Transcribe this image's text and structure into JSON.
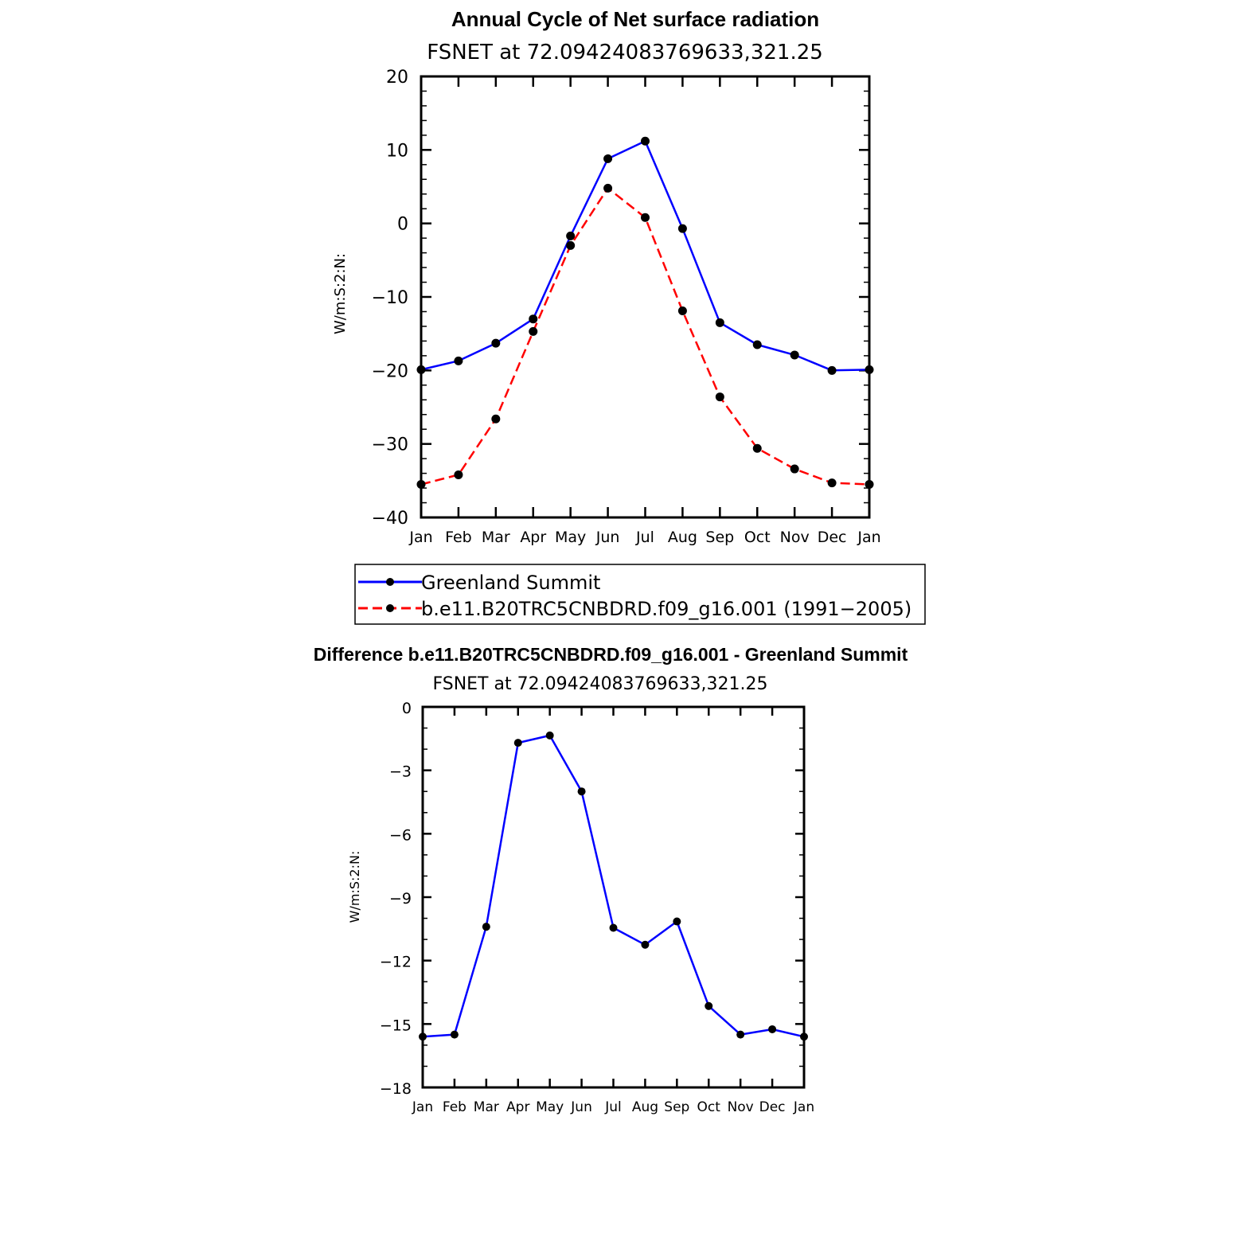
{
  "chart_data": [
    {
      "type": "line",
      "title": "Annual Cycle of Net surface radiation",
      "subtitle": "FSNET at 72.09424083769633,321.25",
      "ylabel": "W/m:S:2:N:",
      "xlabel": "",
      "categories": [
        "Jan",
        "Feb",
        "Mar",
        "Apr",
        "May",
        "Jun",
        "Jul",
        "Aug",
        "Sep",
        "Oct",
        "Nov",
        "Dec",
        "Jan"
      ],
      "ylim": [
        -40,
        20
      ],
      "yticks": [
        -40,
        -30,
        -20,
        -10,
        0,
        10,
        20
      ],
      "ytick_labels": [
        "−40",
        "−30",
        "−20",
        "−10",
        "0",
        "10",
        "20"
      ],
      "series": [
        {
          "name": "Greenland Summit",
          "color": "#0000ff",
          "style": "solid",
          "values": [
            -19.9,
            -18.7,
            -16.3,
            -13.0,
            -1.7,
            8.8,
            11.2,
            -0.7,
            -13.5,
            -16.5,
            -17.9,
            -20.0,
            -19.9
          ]
        },
        {
          "name": "b.e11.B20TRC5CNBDRD.f09_g16.001 (1991−2005)",
          "color": "#ff0000",
          "style": "dashed",
          "values": [
            -35.5,
            -34.2,
            -26.6,
            -14.7,
            -3.0,
            4.8,
            0.8,
            -11.9,
            -23.6,
            -30.6,
            -33.4,
            -35.3,
            -35.5
          ]
        }
      ],
      "legend": "bottom"
    },
    {
      "type": "line",
      "title": "Difference b.e11.B20TRC5CNBDRD.f09_g16.001 - Greenland Summit",
      "subtitle": "FSNET at 72.09424083769633,321.25",
      "ylabel": "W/m:S:2:N:",
      "xlabel": "",
      "categories": [
        "Jan",
        "Feb",
        "Mar",
        "Apr",
        "May",
        "Jun",
        "Jul",
        "Aug",
        "Sep",
        "Oct",
        "Nov",
        "Dec",
        "Jan"
      ],
      "ylim": [
        -18,
        0
      ],
      "yticks": [
        -18,
        -15,
        -12,
        -9,
        -6,
        -3,
        0
      ],
      "ytick_labels": [
        "−18",
        "−15",
        "−12",
        "−9",
        "−6",
        "−3",
        "0"
      ],
      "series": [
        {
          "name": "Difference",
          "color": "#0000ff",
          "style": "solid",
          "values": [
            -15.6,
            -15.5,
            -10.4,
            -1.7,
            -1.35,
            -4.0,
            -10.45,
            -11.25,
            -10.15,
            -14.15,
            -15.5,
            -15.25,
            -15.6
          ]
        }
      ]
    }
  ]
}
